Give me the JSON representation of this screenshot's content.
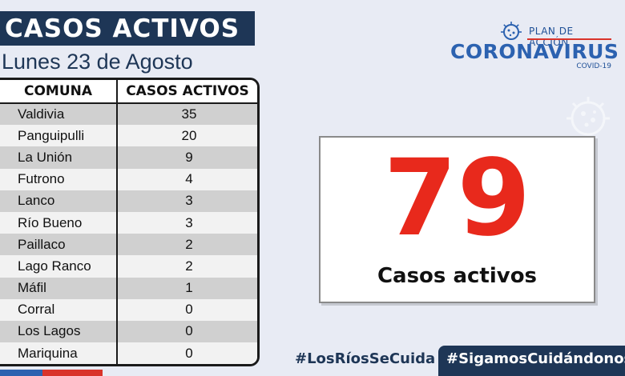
{
  "header": {
    "title": "CASOS ACTIVOS",
    "date": "Lunes 23 de Agosto"
  },
  "table": {
    "headers": [
      "COMUNA",
      "CASOS ACTIVOS"
    ],
    "rows": [
      {
        "comuna": "Valdivia",
        "casos": "35"
      },
      {
        "comuna": "Panguipulli",
        "casos": "20"
      },
      {
        "comuna": "La Unión",
        "casos": "9"
      },
      {
        "comuna": "Futrono",
        "casos": "4"
      },
      {
        "comuna": "Lanco",
        "casos": "3"
      },
      {
        "comuna": "Río Bueno",
        "casos": "3"
      },
      {
        "comuna": "Paillaco",
        "casos": "2"
      },
      {
        "comuna": "Lago Ranco",
        "casos": "2"
      },
      {
        "comuna": "Máfil",
        "casos": "1"
      },
      {
        "comuna": "Corral",
        "casos": "0"
      },
      {
        "comuna": "Los Lagos",
        "casos": "0"
      },
      {
        "comuna": "Mariquina",
        "casos": "0"
      }
    ]
  },
  "logo": {
    "plan": "PLAN DE ACCIÓN",
    "brand": "CORONAVIRUS",
    "sub": "COVID-19",
    "icon": "virus-icon"
  },
  "summary": {
    "total": "79",
    "label": "Casos activos"
  },
  "footer": {
    "hashtag_1": "#LosRíosSeCuida",
    "hashtag_2": "#SigamosCuidándonos"
  },
  "colors": {
    "navy": "#1e3656",
    "brand_blue": "#2c62b0",
    "accent_red": "#e8291c",
    "background": "#e8ebf4"
  }
}
